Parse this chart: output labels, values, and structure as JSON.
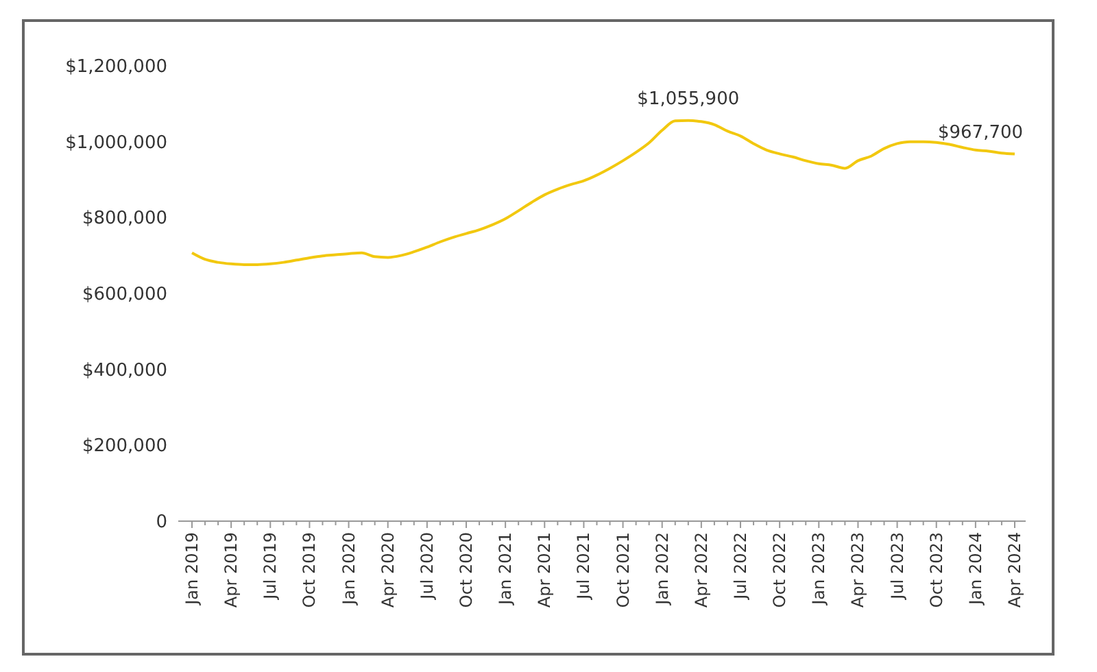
{
  "chart_data": {
    "type": "line",
    "categories": [
      "Jan 2019",
      null,
      null,
      "Apr 2019",
      null,
      null,
      "Jul 2019",
      null,
      null,
      "Oct 2019",
      null,
      null,
      "Jan 2020",
      null,
      null,
      "Apr 2020",
      null,
      null,
      "Jul 2020",
      null,
      null,
      "Oct 2020",
      null,
      null,
      "Jan 2021",
      null,
      null,
      "Apr 2021",
      null,
      null,
      "Jul 2021",
      null,
      null,
      "Oct 2021",
      null,
      null,
      "Jan 2022",
      null,
      null,
      "Apr 2022",
      null,
      null,
      "Jul 2022",
      null,
      null,
      "Oct 2022",
      null,
      null,
      "Jan 2023",
      null,
      null,
      "Apr 2023",
      null,
      null,
      "Jul 2023",
      null,
      null,
      "Oct 2023",
      null,
      null,
      "Jan 2024",
      null,
      null,
      "Apr 2024"
    ],
    "series": [
      {
        "color": "#f2c80f",
        "values": [
          707000,
          690000,
          682000,
          678000,
          676000,
          676000,
          678000,
          682000,
          688000,
          694000,
          699000,
          702000,
          705000,
          707000,
          697000,
          695000,
          700000,
          710000,
          722000,
          736000,
          748000,
          758000,
          768000,
          781000,
          797000,
          818000,
          840000,
          860000,
          875000,
          887000,
          897000,
          912000,
          930000,
          950000,
          972000,
          997000,
          1030000,
          1055000,
          1055900,
          1053000,
          1045000,
          1028000,
          1015000,
          995000,
          978000,
          968000,
          960000,
          950000,
          942000,
          938000,
          930000,
          950000,
          962000,
          982000,
          995000,
          1000000,
          1000000,
          998000,
          993000,
          985000,
          978000,
          975000,
          970000,
          967700
        ],
        "value_labels": [
          null,
          null,
          null,
          null,
          null,
          null,
          null,
          null,
          null,
          null,
          null,
          null,
          null,
          null,
          null,
          null,
          null,
          null,
          null,
          null,
          null,
          null,
          null,
          null,
          null,
          null,
          null,
          null,
          null,
          null,
          null,
          null,
          null,
          null,
          null,
          null,
          null,
          null,
          "$1,055,900",
          null,
          null,
          null,
          null,
          null,
          null,
          null,
          null,
          null,
          null,
          null,
          null,
          null,
          null,
          null,
          null,
          null,
          null,
          null,
          null,
          null,
          null,
          null,
          null,
          "$967,700"
        ]
      }
    ],
    "ylim": [
      0,
      1200000
    ],
    "yticks": [
      {
        "value": 0,
        "label": "0"
      },
      {
        "value": 200000,
        "label": "$200,000"
      },
      {
        "value": 400000,
        "label": "$400,000"
      },
      {
        "value": 600000,
        "label": "$600,000"
      },
      {
        "value": 800000,
        "label": "$800,000"
      },
      {
        "value": 1000000,
        "label": "$1,000,000"
      },
      {
        "value": 1200000,
        "label": "$1,200,000"
      }
    ],
    "grid": false,
    "marker": "none",
    "line_style": "solid"
  }
}
